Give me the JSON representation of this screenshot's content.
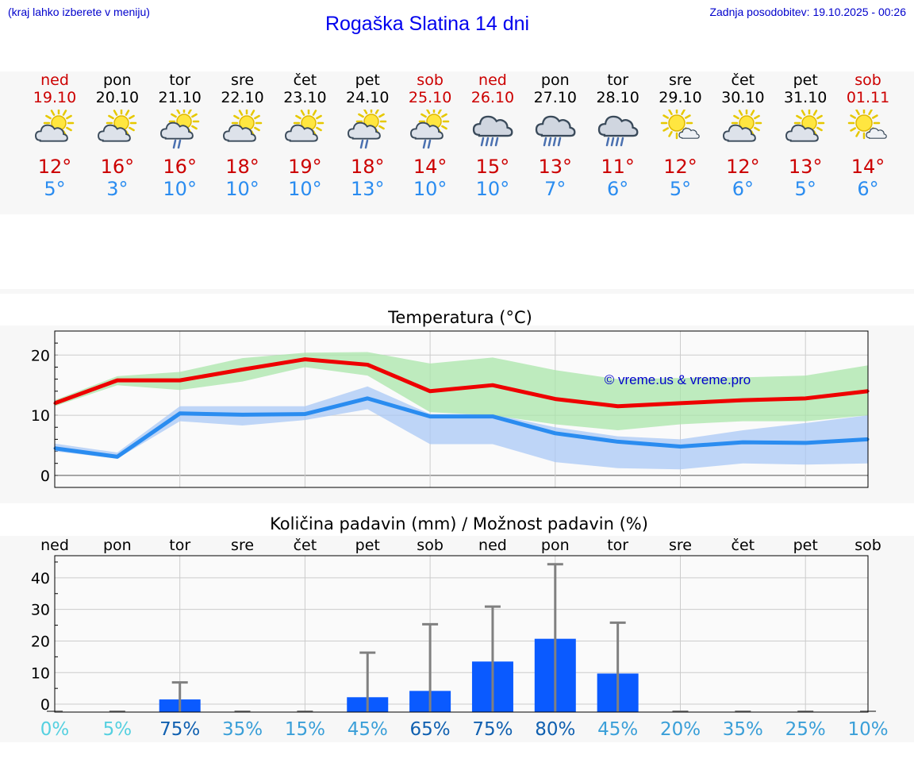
{
  "header": {
    "hint": "(kraj lahko izberete v meniju)",
    "title": "Rogaška Slatina 14 dni",
    "updated": "Zadnja posodobitev: 19.10.2025 - 00:26"
  },
  "days": [
    {
      "name": "ned",
      "date": "19.10",
      "weekend": true,
      "icon": "partly-cloudy-icon",
      "tmax": "12°",
      "tmin": "5°"
    },
    {
      "name": "pon",
      "date": "20.10",
      "weekend": false,
      "icon": "partly-cloudy-icon",
      "tmax": "16°",
      "tmin": "3°"
    },
    {
      "name": "tor",
      "date": "21.10",
      "weekend": false,
      "icon": "partly-cloudy-rain-icon",
      "tmax": "16°",
      "tmin": "10°"
    },
    {
      "name": "sre",
      "date": "22.10",
      "weekend": false,
      "icon": "partly-cloudy-icon",
      "tmax": "18°",
      "tmin": "10°"
    },
    {
      "name": "čet",
      "date": "23.10",
      "weekend": false,
      "icon": "partly-cloudy-icon",
      "tmax": "19°",
      "tmin": "10°"
    },
    {
      "name": "pet",
      "date": "24.10",
      "weekend": false,
      "icon": "partly-cloudy-rain-icon",
      "tmax": "18°",
      "tmin": "13°"
    },
    {
      "name": "sob",
      "date": "25.10",
      "weekend": true,
      "icon": "partly-cloudy-rain-icon",
      "tmax": "14°",
      "tmin": "10°"
    },
    {
      "name": "ned",
      "date": "26.10",
      "weekend": true,
      "icon": "rain-cloud-icon",
      "tmax": "15°",
      "tmin": "10°"
    },
    {
      "name": "pon",
      "date": "27.10",
      "weekend": false,
      "icon": "rain-cloud-icon",
      "tmax": "13°",
      "tmin": "7°"
    },
    {
      "name": "tor",
      "date": "28.10",
      "weekend": false,
      "icon": "rain-cloud-icon",
      "tmax": "11°",
      "tmin": "6°"
    },
    {
      "name": "sre",
      "date": "29.10",
      "weekend": false,
      "icon": "sun-small-cloud-icon",
      "tmax": "12°",
      "tmin": "5°"
    },
    {
      "name": "čet",
      "date": "30.10",
      "weekend": false,
      "icon": "partly-cloudy-icon",
      "tmax": "12°",
      "tmin": "6°"
    },
    {
      "name": "pet",
      "date": "31.10",
      "weekend": false,
      "icon": "partly-cloudy-icon",
      "tmax": "13°",
      "tmin": "5°"
    },
    {
      "name": "sob",
      "date": "01.11",
      "weekend": true,
      "icon": "sun-small-cloud-icon",
      "tmax": "14°",
      "tmin": "6°"
    }
  ],
  "colors": {
    "max_line": "#ee0000",
    "min_line": "#2a8cf0",
    "max_band": "#aae6aa",
    "min_band": "#aac8f5",
    "bar": "#0a5aff",
    "errbar": "#808080",
    "weekend": "#cc0000",
    "percent_low": "#55d0e0",
    "percent_mid": "#3a9fd8",
    "percent_high": "#1060b0"
  },
  "chart_data": [
    {
      "type": "line",
      "title": "Temperatura (°C)",
      "watermark": "© vreme.us & vreme.pro",
      "ylim": [
        -2,
        24
      ],
      "yticks": [
        0,
        10,
        20
      ],
      "grid": true,
      "x": [
        0,
        1,
        2,
        3,
        4,
        5,
        6,
        7,
        8,
        9,
        10,
        11,
        12,
        13
      ],
      "series": [
        {
          "role": "max",
          "values": [
            12,
            15.8,
            15.8,
            17.6,
            19.3,
            18.4,
            14,
            15,
            12.7,
            11.5,
            12,
            12.5,
            12.8,
            14
          ]
        },
        {
          "role": "min",
          "values": [
            4.5,
            3.1,
            10.3,
            10.1,
            10.2,
            12.8,
            9.8,
            9.8,
            7,
            5.6,
            4.8,
            5.5,
            5.4,
            6
          ]
        }
      ],
      "bands": [
        {
          "role": "max-range",
          "low": [
            11.5,
            15,
            14.2,
            15.6,
            18,
            16.6,
            10.5,
            10,
            8.5,
            7.5,
            8.5,
            9,
            9,
            10
          ],
          "high": [
            12.5,
            16.5,
            17.2,
            19.5,
            20.4,
            20.5,
            18.6,
            19.6,
            17.5,
            16,
            16.2,
            16.3,
            16.6,
            18.3
          ]
        },
        {
          "role": "min-range",
          "low": [
            4,
            2.8,
            9,
            8.3,
            9.2,
            11,
            5.2,
            5.2,
            2.2,
            1.2,
            1,
            2,
            1.8,
            2
          ],
          "high": [
            5.3,
            3.8,
            11.5,
            11.5,
            11.5,
            14.8,
            10.2,
            10.2,
            8,
            6.5,
            6,
            7.5,
            8.7,
            10
          ]
        }
      ]
    },
    {
      "type": "bar",
      "title": "Količina padavin (mm) / Možnost padavin (%)",
      "categories": [
        "ned",
        "pon",
        "tor",
        "sre",
        "čet",
        "pet",
        "sob",
        "ned",
        "pon",
        "tor",
        "sre",
        "čet",
        "pet",
        "sob"
      ],
      "values": [
        0,
        0,
        1.5,
        0,
        0,
        2.2,
        4.2,
        13.5,
        20.7,
        9.7,
        0,
        0,
        0,
        0
      ],
      "err_high": [
        0,
        0,
        6.9,
        0,
        0,
        16.3,
        25.3,
        30.9,
        44.3,
        25.8,
        0,
        0.1,
        0,
        0
      ],
      "percent": [
        "0%",
        "5%",
        "75%",
        "35%",
        "15%",
        "45%",
        "65%",
        "75%",
        "80%",
        "45%",
        "20%",
        "35%",
        "25%",
        "10%"
      ],
      "percent_level": [
        "low",
        "low",
        "high",
        "mid",
        "mid",
        "mid",
        "high",
        "high",
        "high",
        "mid",
        "mid",
        "mid",
        "mid",
        "mid"
      ],
      "ylim": [
        -2.5,
        47
      ],
      "yticks": [
        0,
        10,
        20,
        30,
        40
      ],
      "grid": true
    }
  ]
}
